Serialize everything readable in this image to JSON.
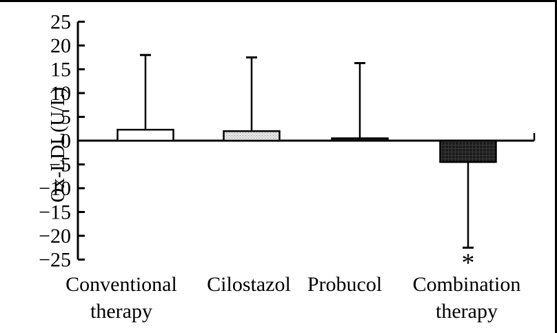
{
  "figure": {
    "background": "#ffffff",
    "scan_border_color": "#000000"
  },
  "chart_data": {
    "type": "bar",
    "title": "",
    "xlabel": "",
    "ylabel": "Ox-LDL(U/L)",
    "ylim": [
      -25,
      25
    ],
    "ytick_step": 5,
    "yticks": [
      25,
      20,
      15,
      10,
      5,
      0,
      -5,
      -10,
      -15,
      -20,
      -25
    ],
    "categories": [
      "Conventional\ntherapy",
      "Cilostazol",
      "Probucol",
      "Combination\ntherapy"
    ],
    "values": [
      2.3,
      2.0,
      0.5,
      -4.5
    ],
    "error_whisker_ends": [
      18.0,
      17.5,
      16.3,
      -22.5
    ],
    "bar_styles": [
      "white",
      "light-stipple",
      "dark-solid",
      "dark-crosshatch"
    ],
    "annotations": [
      {
        "category_index": 3,
        "text": "*"
      }
    ],
    "axis_color": "#000000",
    "bar_fill_light": "#e3e3e3",
    "bar_fill_dark": "#1c1c1c",
    "grid": false,
    "legend": false
  }
}
